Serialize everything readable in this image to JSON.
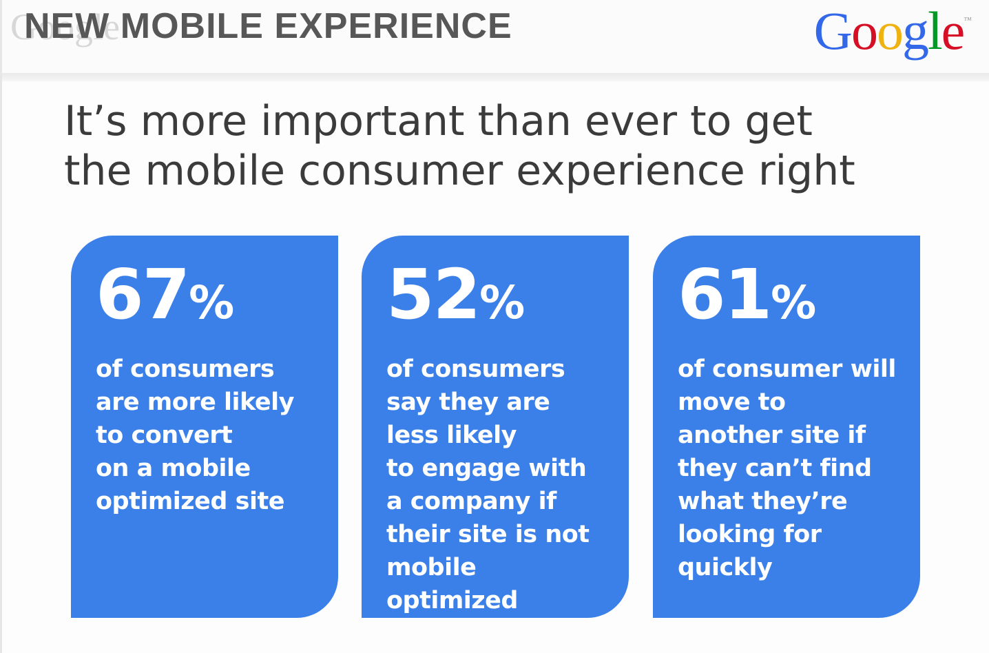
{
  "header": {
    "title": "NEW MOBILE EXPERIENCE",
    "watermark": "Google",
    "logo": {
      "letters": [
        {
          "char": "G",
          "color": "#3369e8"
        },
        {
          "char": "o",
          "color": "#d50f25"
        },
        {
          "char": "o",
          "color": "#eeb211"
        },
        {
          "char": "g",
          "color": "#3369e8"
        },
        {
          "char": "l",
          "color": "#009925"
        },
        {
          "char": "e",
          "color": "#d50f25"
        }
      ],
      "trademark": "™"
    }
  },
  "headline": {
    "lines": [
      "It’s more important than ever to get",
      "the mobile consumer experience right"
    ]
  },
  "accent_color": "#3b7fe8",
  "cards": [
    {
      "number": "67",
      "percent_sign": "%",
      "lines": [
        "of consumers",
        "are more likely",
        "to convert",
        "on a mobile",
        "optimized site"
      ]
    },
    {
      "number": "52",
      "percent_sign": "%",
      "lines": [
        "of consumers",
        "say they are",
        "less likely",
        "to engage with",
        "a company if",
        "their site is not",
        "mobile",
        "optimized"
      ]
    },
    {
      "number": "61",
      "percent_sign": "%",
      "lines": [
        "of consumer will",
        "move to",
        "another site if",
        "they can’t find",
        "what they’re",
        "looking for",
        "quickly"
      ]
    }
  ]
}
